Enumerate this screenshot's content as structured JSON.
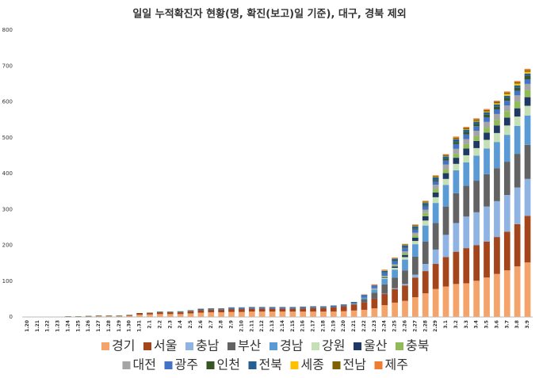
{
  "chart_data": {
    "type": "stacked_bar",
    "title": "일일 누적확진자 현황(명, 확진(보고)일 기준), 대구, 경북 제외",
    "categories": [
      "1.20",
      "1.21",
      "1.22",
      "1.23",
      "1.24",
      "1.25",
      "1.26",
      "1.27",
      "1.28",
      "1.29",
      "1.30",
      "1.31",
      "2.1",
      "2.2",
      "2.3",
      "2.4",
      "2.5",
      "2.6",
      "2.7",
      "2.8",
      "2.9",
      "2.10",
      "2.11",
      "2.12",
      "2.13",
      "2.14",
      "2.15",
      "2.16",
      "2.17",
      "2.18",
      "2.19",
      "2.20",
      "2.21",
      "2.22",
      "2.23",
      "2.24",
      "2.25",
      "2.26",
      "2.27",
      "2.28",
      "2.29",
      "3.1",
      "3.2",
      "3.3",
      "3.4",
      "3.5",
      "3.6",
      "3.7",
      "3.8",
      "3.9"
    ],
    "ylim": [
      0,
      800
    ],
    "yticks": [
      0,
      100,
      200,
      300,
      400,
      500,
      600,
      700,
      800
    ],
    "grid": false,
    "series": [
      {
        "name": "경기",
        "color": "#f4a46a",
        "values": [
          0,
          0,
          0,
          0,
          0,
          0,
          1,
          2,
          2,
          2,
          3,
          6,
          7,
          8,
          8,
          8,
          10,
          12,
          13,
          13,
          14,
          14,
          15,
          15,
          15,
          15,
          15,
          15,
          15,
          15,
          15,
          16,
          18,
          20,
          24,
          33,
          40,
          45,
          55,
          66,
          78,
          85,
          92,
          94,
          101,
          110,
          120,
          130,
          141,
          152
        ]
      },
      {
        "name": "서울",
        "color": "#a5451b",
        "values": [
          0,
          0,
          0,
          0,
          1,
          1,
          1,
          1,
          1,
          1,
          2,
          4,
          4,
          5,
          5,
          5,
          6,
          7,
          7,
          7,
          8,
          8,
          8,
          8,
          8,
          8,
          8,
          9,
          10,
          10,
          12,
          14,
          16,
          20,
          27,
          31,
          38,
          43,
          55,
          62,
          70,
          82,
          90,
          98,
          99,
          100,
          103,
          108,
          118,
          130
        ]
      },
      {
        "name": "충남",
        "color": "#8fb4e3",
        "values": [
          0,
          0,
          0,
          0,
          0,
          0,
          0,
          0,
          0,
          0,
          0,
          0,
          0,
          0,
          0,
          0,
          0,
          0,
          0,
          0,
          0,
          0,
          0,
          0,
          0,
          0,
          0,
          0,
          0,
          0,
          0,
          0,
          0,
          0,
          0,
          1,
          2,
          4,
          8,
          20,
          40,
          62,
          80,
          88,
          92,
          98,
          100,
          102,
          102,
          103
        ]
      },
      {
        "name": "부산",
        "color": "#636363",
        "values": [
          0,
          0,
          0,
          0,
          0,
          0,
          0,
          0,
          0,
          0,
          0,
          0,
          0,
          0,
          0,
          0,
          0,
          0,
          0,
          0,
          0,
          0,
          0,
          0,
          0,
          0,
          0,
          0,
          0,
          0,
          0,
          0,
          2,
          10,
          17,
          26,
          30,
          38,
          50,
          62,
          74,
          79,
          83,
          86,
          88,
          90,
          92,
          93,
          94,
          95
        ]
      },
      {
        "name": "경남",
        "color": "#5b9bd5",
        "values": [
          0,
          0,
          0,
          0,
          0,
          0,
          0,
          0,
          0,
          0,
          0,
          0,
          0,
          0,
          0,
          0,
          0,
          0,
          0,
          0,
          0,
          0,
          0,
          0,
          0,
          0,
          0,
          0,
          0,
          0,
          0,
          0,
          1,
          4,
          8,
          15,
          22,
          30,
          35,
          45,
          56,
          60,
          64,
          65,
          70,
          72,
          73,
          75,
          78,
          82
        ]
      },
      {
        "name": "강원",
        "color": "#c5e0b4",
        "values": [
          0,
          0,
          0,
          0,
          0,
          0,
          0,
          0,
          0,
          0,
          0,
          0,
          0,
          0,
          0,
          0,
          0,
          0,
          0,
          0,
          0,
          0,
          0,
          0,
          0,
          0,
          0,
          0,
          0,
          0,
          0,
          0,
          0,
          0,
          1,
          3,
          5,
          7,
          9,
          14,
          16,
          17,
          18,
          20,
          21,
          24,
          25,
          26,
          26,
          27
        ]
      },
      {
        "name": "울산",
        "color": "#203864",
        "values": [
          0,
          0,
          0,
          0,
          0,
          0,
          0,
          0,
          0,
          0,
          0,
          0,
          0,
          0,
          0,
          0,
          0,
          0,
          0,
          0,
          0,
          0,
          0,
          0,
          0,
          0,
          0,
          0,
          0,
          0,
          0,
          0,
          0,
          0,
          1,
          2,
          4,
          6,
          9,
          12,
          13,
          16,
          17,
          19,
          20,
          20,
          21,
          22,
          23,
          24
        ]
      },
      {
        "name": "충북",
        "color": "#8fbc57",
        "values": [
          0,
          0,
          0,
          0,
          0,
          0,
          0,
          0,
          0,
          0,
          0,
          0,
          0,
          0,
          0,
          0,
          0,
          0,
          0,
          0,
          0,
          0,
          0,
          0,
          0,
          0,
          0,
          0,
          0,
          0,
          0,
          0,
          0,
          0,
          1,
          2,
          3,
          5,
          7,
          9,
          10,
          11,
          11,
          12,
          13,
          14,
          16,
          18,
          19,
          20
        ]
      },
      {
        "name": "대전",
        "color": "#a5a5a5",
        "values": [
          0,
          0,
          0,
          0,
          0,
          0,
          0,
          0,
          0,
          0,
          0,
          0,
          0,
          0,
          0,
          0,
          0,
          0,
          0,
          0,
          0,
          0,
          0,
          0,
          0,
          0,
          0,
          0,
          0,
          0,
          0,
          0,
          0,
          0,
          1,
          2,
          3,
          5,
          7,
          9,
          12,
          13,
          14,
          14,
          15,
          16,
          16,
          16,
          17,
          17
        ]
      },
      {
        "name": "광주",
        "color": "#4472c4",
        "values": [
          0,
          0,
          0,
          0,
          0,
          0,
          0,
          0,
          0,
          0,
          0,
          0,
          0,
          0,
          0,
          1,
          1,
          2,
          2,
          2,
          3,
          3,
          3,
          3,
          3,
          3,
          3,
          3,
          3,
          3,
          3,
          3,
          3,
          6,
          7,
          8,
          9,
          9,
          9,
          9,
          9,
          11,
          13,
          13,
          13,
          13,
          13,
          13,
          13,
          13
        ]
      },
      {
        "name": "인천",
        "color": "#375623",
        "values": [
          1,
          1,
          1,
          1,
          1,
          1,
          1,
          1,
          1,
          1,
          1,
          1,
          1,
          1,
          1,
          1,
          1,
          1,
          1,
          1,
          1,
          1,
          1,
          1,
          1,
          1,
          1,
          1,
          1,
          1,
          1,
          1,
          1,
          1,
          1,
          1,
          2,
          2,
          3,
          3,
          4,
          5,
          6,
          6,
          6,
          7,
          7,
          7,
          8,
          9
        ]
      },
      {
        "name": "전북",
        "color": "#255e91",
        "values": [
          0,
          0,
          0,
          0,
          0,
          0,
          0,
          0,
          0,
          0,
          0,
          0,
          0,
          1,
          1,
          1,
          1,
          1,
          1,
          1,
          1,
          1,
          1,
          1,
          1,
          1,
          1,
          1,
          1,
          1,
          1,
          1,
          1,
          1,
          1,
          5,
          5,
          6,
          6,
          7,
          7,
          7,
          7,
          7,
          7,
          7,
          7,
          7,
          7,
          7
        ]
      },
      {
        "name": "세종",
        "color": "#ffc000",
        "values": [
          0,
          0,
          0,
          0,
          0,
          0,
          0,
          0,
          0,
          0,
          0,
          0,
          0,
          0,
          0,
          0,
          0,
          0,
          0,
          0,
          0,
          0,
          0,
          0,
          0,
          0,
          0,
          0,
          0,
          0,
          0,
          0,
          0,
          0,
          0,
          1,
          1,
          1,
          1,
          1,
          1,
          1,
          1,
          1,
          2,
          2,
          3,
          5,
          5,
          5
        ]
      },
      {
        "name": "전남",
        "color": "#806000",
        "values": [
          0,
          0,
          0,
          0,
          0,
          0,
          0,
          0,
          0,
          0,
          0,
          0,
          0,
          0,
          0,
          0,
          0,
          0,
          0,
          0,
          0,
          0,
          0,
          0,
          0,
          0,
          0,
          0,
          0,
          0,
          0,
          0,
          0,
          0,
          0,
          0,
          0,
          1,
          2,
          3,
          3,
          3,
          4,
          4,
          4,
          4,
          4,
          4,
          4,
          4
        ]
      },
      {
        "name": "제주",
        "color": "#ed7d31",
        "values": [
          0,
          0,
          0,
          0,
          0,
          0,
          0,
          0,
          0,
          0,
          0,
          0,
          0,
          0,
          0,
          0,
          0,
          0,
          0,
          0,
          0,
          0,
          0,
          0,
          0,
          0,
          0,
          0,
          0,
          0,
          0,
          0,
          0,
          1,
          2,
          2,
          2,
          2,
          2,
          2,
          2,
          2,
          3,
          3,
          3,
          3,
          3,
          3,
          3,
          4
        ]
      }
    ]
  }
}
